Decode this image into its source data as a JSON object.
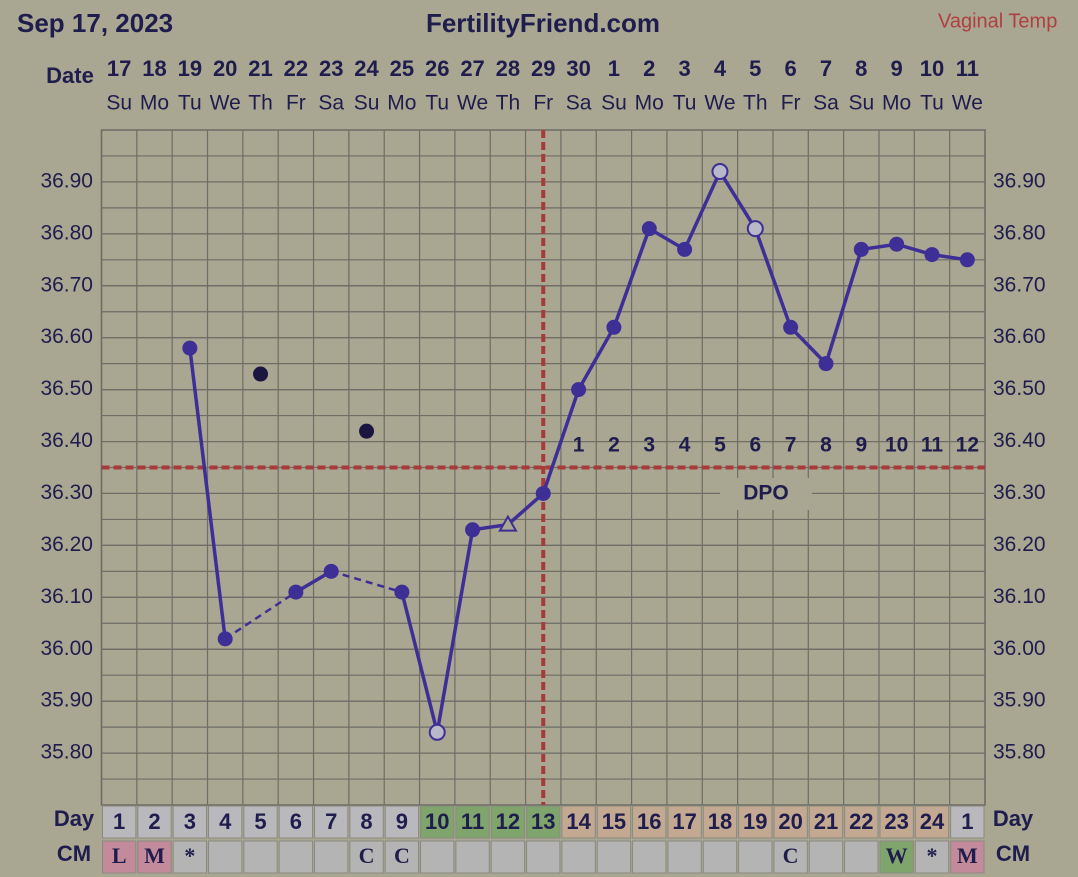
{
  "header": {
    "date": "Sep 17, 2023",
    "site": "FertilityFriend.com",
    "temp_type": "Vaginal Temp"
  },
  "chart_data": {
    "type": "line",
    "date_label": "Date",
    "categories": [
      "17",
      "18",
      "19",
      "20",
      "21",
      "22",
      "23",
      "24",
      "25",
      "26",
      "27",
      "28",
      "29",
      "30",
      "1",
      "2",
      "3",
      "4",
      "5",
      "6",
      "7",
      "8",
      "9",
      "10",
      "11"
    ],
    "weekdays": [
      "Su",
      "Mo",
      "Tu",
      "We",
      "Th",
      "Fr",
      "Sa",
      "Su",
      "Mo",
      "Tu",
      "We",
      "Th",
      "Fr",
      "Sa",
      "Su",
      "Mo",
      "Tu",
      "We",
      "Th",
      "Fr",
      "Sa",
      "Su",
      "Mo",
      "Tu",
      "We"
    ],
    "values": [
      null,
      null,
      36.58,
      36.02,
      null,
      36.11,
      36.15,
      null,
      36.11,
      35.84,
      36.23,
      36.24,
      36.3,
      36.5,
      36.62,
      36.81,
      36.77,
      36.92,
      36.81,
      36.62,
      36.55,
      36.77,
      36.78,
      36.76,
      36.75
    ],
    "marker_styles": [
      null,
      null,
      "circle",
      "circle",
      null,
      "circle",
      "circle",
      null,
      "circle",
      "open-circle",
      "circle",
      "open-triangle",
      "circle",
      "circle",
      "circle",
      "circle",
      "circle",
      "open-circle",
      "open-circle",
      "circle",
      "circle",
      "circle",
      "circle",
      "circle",
      "circle"
    ],
    "discarded_values": [
      null,
      null,
      null,
      null,
      36.53,
      null,
      null,
      36.42,
      null,
      null,
      null,
      null,
      null,
      null,
      null,
      null,
      null,
      null,
      null,
      null,
      null,
      null,
      null,
      null,
      null
    ],
    "color": "#3d2f96",
    "discarded_color": "#1a1640",
    "ylim": [
      35.7,
      37.0
    ],
    "yticks": [
      {
        "value": 35.8,
        "label": "35.80"
      },
      {
        "value": 35.9,
        "label": "35.90"
      },
      {
        "value": 36.0,
        "label": "36.00"
      },
      {
        "value": 36.1,
        "label": "36.10"
      },
      {
        "value": 36.2,
        "label": "36.20"
      },
      {
        "value": 36.3,
        "label": "36.30"
      },
      {
        "value": 36.4,
        "label": "36.40"
      },
      {
        "value": 36.5,
        "label": "36.50"
      },
      {
        "value": 36.6,
        "label": "36.60"
      },
      {
        "value": 36.7,
        "label": "36.70"
      },
      {
        "value": 36.8,
        "label": "36.80"
      },
      {
        "value": 36.9,
        "label": "36.90"
      }
    ],
    "grid": true,
    "coverline": 36.35,
    "ovulation_category": "29",
    "dpo_label": "DPO",
    "dpo": [
      null,
      null,
      null,
      null,
      null,
      null,
      null,
      null,
      null,
      null,
      null,
      null,
      null,
      1,
      2,
      3,
      4,
      5,
      6,
      7,
      8,
      9,
      10,
      11,
      12
    ],
    "cycle_day_label": "Day",
    "cycle_days": [
      1,
      2,
      3,
      4,
      5,
      6,
      7,
      8,
      9,
      10,
      11,
      12,
      13,
      14,
      15,
      16,
      17,
      18,
      19,
      20,
      21,
      22,
      23,
      24,
      1
    ],
    "cycle_day_colors": [
      "#b9b9bd",
      "#b9b9bd",
      "#b9b9bd",
      "#b9b9bd",
      "#b9b9bd",
      "#b9b9bd",
      "#b9b9bd",
      "#b9b9bd",
      "#b9b9bd",
      "#7fa56c",
      "#7fa56c",
      "#7fa56c",
      "#7fa56c",
      "#c4a992",
      "#c4a992",
      "#c4a992",
      "#c4a992",
      "#c4a992",
      "#c4a992",
      "#c4a992",
      "#c4a992",
      "#c4a992",
      "#c4a992",
      "#c4a992",
      "#b9b9bd"
    ],
    "cm_label": "CM",
    "cm": [
      "L",
      "M",
      "*",
      null,
      null,
      null,
      null,
      "C",
      "C",
      null,
      null,
      null,
      null,
      null,
      null,
      null,
      null,
      null,
      null,
      "C",
      null,
      null,
      "W",
      "*",
      "M"
    ],
    "cm_colors": [
      "#c38a9c",
      "#c38a9c",
      "#b4b4b4",
      "#b4b4b4",
      "#b4b4b4",
      "#b4b4b4",
      "#b4b4b4",
      "#b4b4b4",
      "#b4b4b4",
      "#b4b4b4",
      "#b4b4b4",
      "#b4b4b4",
      "#b4b4b4",
      "#b4b4b4",
      "#b4b4b4",
      "#b4b4b4",
      "#b4b4b4",
      "#b4b4b4",
      "#b4b4b4",
      "#b4b4b4",
      "#b4b4b4",
      "#b4b4b4",
      "#7fa56c",
      "#b4b4b4",
      "#c38a9c"
    ]
  }
}
